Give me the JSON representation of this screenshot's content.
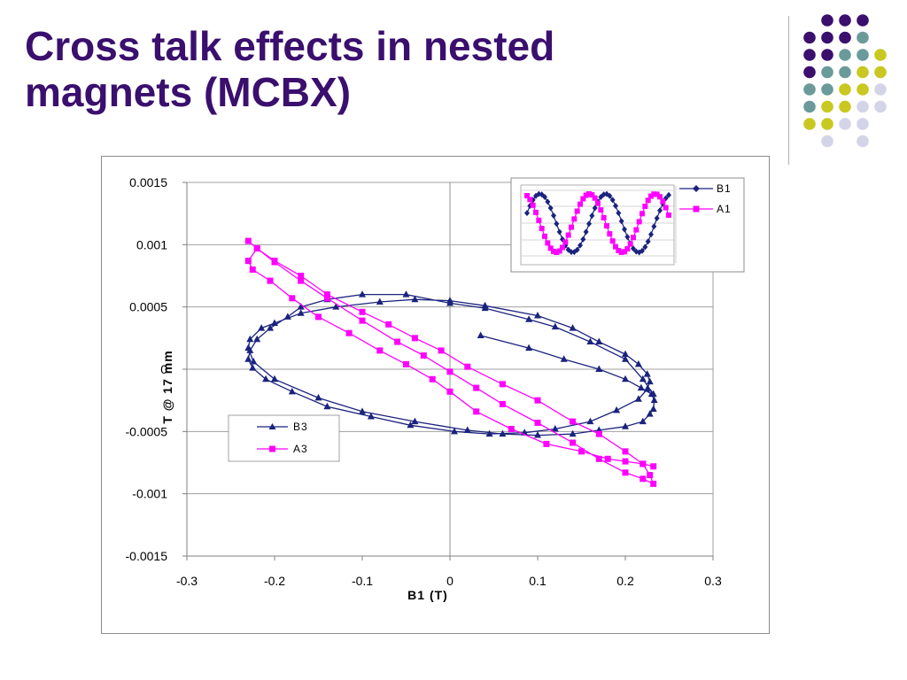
{
  "slide": {
    "title_line1": "Cross talk effects in nested",
    "title_line2": "magnets (MCBX)"
  },
  "theme": {
    "title_color": "#3a0f6e",
    "dot_colors": {
      "purple": "#3a0f6e",
      "teal": "#6b9a9a",
      "yellow": "#c8c820",
      "lavender": "#d4d4e8"
    },
    "series_colors": {
      "B1": "#1a237e",
      "A1": "#ff00ff",
      "B3": "#1a237e",
      "A3": "#ff00ff"
    }
  },
  "chart_data": [
    {
      "type": "scatter",
      "xlabel": "B1 (T)",
      "ylabel": "T @ 17 mm",
      "xlim": [
        -0.3,
        0.3
      ],
      "ylim": [
        -0.0015,
        0.0015
      ],
      "xticks": [
        "-0.3",
        "-0.2",
        "-0.1",
        "0",
        "0.1",
        "0.2",
        "0.3"
      ],
      "yticks": [
        "0.0015",
        "0.001",
        "0.0005",
        "0",
        "-0.0005",
        "-0.001",
        "-0.0015"
      ],
      "xtick_values": [
        -0.3,
        -0.2,
        -0.1,
        0,
        0.1,
        0.2,
        0.3
      ],
      "ytick_values": [
        0.0015,
        0.001,
        0.0005,
        0,
        -0.0005,
        -0.001,
        -0.0015
      ],
      "grid": "horizontal",
      "legend_position": "bottom-left",
      "series": [
        {
          "name": "B3",
          "marker": "triangle",
          "color": "#1a237e",
          "x": [
            0.035,
            0.09,
            0.13,
            0.17,
            0.2,
            0.218,
            0.23,
            0.233,
            0.232,
            0.228,
            0.22,
            0.2,
            0.17,
            0.14,
            0.1,
            0.06,
            0.02,
            -0.04,
            -0.1,
            -0.15,
            -0.2,
            -0.224,
            -0.23,
            -0.228,
            -0.215,
            -0.2,
            -0.17,
            -0.13,
            -0.08,
            -0.04,
            0.0,
            0.04,
            0.1,
            0.14,
            0.17,
            0.2,
            0.215,
            0.225,
            0.228,
            0.225,
            0.215,
            0.19,
            0.16,
            0.12,
            0.085,
            0.045,
            0.005,
            -0.045,
            -0.09,
            -0.14,
            -0.18,
            -0.21,
            -0.225,
            -0.23,
            -0.228,
            -0.22,
            -0.205,
            -0.185,
            -0.17,
            -0.14,
            -0.1,
            -0.05,
            0.0,
            0.04,
            0.09,
            0.12,
            0.16,
            0.2,
            0.22,
            0.232
          ],
          "y": [
            0.00027,
            0.00017,
            8e-05,
            -0.0,
            -8e-05,
            -0.00015,
            -0.0002,
            -0.00025,
            -0.00032,
            -0.00036,
            -0.00042,
            -0.00046,
            -0.00049,
            -0.00052,
            -0.00053,
            -0.00052,
            -0.00049,
            -0.00042,
            -0.00034,
            -0.00023,
            -8e-05,
            6e-05,
            0.00017,
            0.00024,
            0.00033,
            0.00037,
            0.00045,
            0.0005,
            0.00054,
            0.00056,
            0.00055,
            0.00051,
            0.00043,
            0.00033,
            0.00022,
            0.00012,
            4e-05,
            -4e-05,
            -0.0001,
            -0.00016,
            -0.00024,
            -0.00033,
            -0.00042,
            -0.00048,
            -0.00051,
            -0.00052,
            -0.0005,
            -0.00045,
            -0.00038,
            -0.0003,
            -0.00018,
            -8e-05,
            1e-05,
            8e-05,
            0.00015,
            0.00024,
            0.00033,
            0.00042,
            0.0005,
            0.00056,
            0.0006,
            0.0006,
            0.00053,
            0.00049,
            0.0004,
            0.00034,
            0.00022,
            8e-05,
            -8e-05,
            -0.0002
          ]
        },
        {
          "name": "A3",
          "marker": "square",
          "color": "#ff00ff",
          "x": [
            -0.23,
            -0.22,
            -0.2,
            -0.17,
            -0.14,
            -0.1,
            -0.06,
            -0.03,
            0.0,
            0.03,
            0.06,
            0.1,
            0.14,
            0.17,
            0.2,
            0.22,
            0.232,
            0.228,
            0.22,
            0.2,
            0.17,
            0.14,
            0.1,
            0.06,
            0.02,
            -0.01,
            -0.04,
            -0.07,
            -0.1,
            -0.14,
            -0.17,
            -0.2,
            -0.22,
            -0.23,
            -0.225,
            -0.205,
            -0.18,
            -0.15,
            -0.115,
            -0.08,
            -0.05,
            -0.02,
            0.0,
            0.03,
            0.07,
            0.11,
            0.15,
            0.18,
            0.2,
            0.22,
            0.232
          ],
          "y": [
            0.00103,
            0.00097,
            0.00086,
            0.00071,
            0.00057,
            0.00039,
            0.00022,
            0.00011,
            -2e-05,
            -0.00015,
            -0.00028,
            -0.00043,
            -0.00059,
            -0.00072,
            -0.00083,
            -0.00088,
            -0.00092,
            -0.00085,
            -0.00076,
            -0.00066,
            -0.00052,
            -0.00042,
            -0.00025,
            -0.00012,
            2e-05,
            0.00015,
            0.00025,
            0.00036,
            0.00046,
            0.0006,
            0.00075,
            0.00087,
            0.00097,
            0.00087,
            0.0008,
            0.00071,
            0.00057,
            0.00042,
            0.00029,
            0.00015,
            4e-05,
            -8e-05,
            -0.00018,
            -0.00034,
            -0.00048,
            -0.0006,
            -0.00066,
            -0.00072,
            -0.00074,
            -0.00076,
            -0.00078
          ]
        }
      ]
    },
    {
      "type": "line",
      "legend_position": "right",
      "series": [
        {
          "name": "B1",
          "marker": "diamond",
          "color": "#1a237e",
          "function": "sine",
          "amplitude": 1,
          "phase": 0
        },
        {
          "name": "A1",
          "marker": "square",
          "color": "#ff00ff",
          "function": "sine",
          "amplitude": 1,
          "phase": 1.5708
        }
      ]
    }
  ]
}
